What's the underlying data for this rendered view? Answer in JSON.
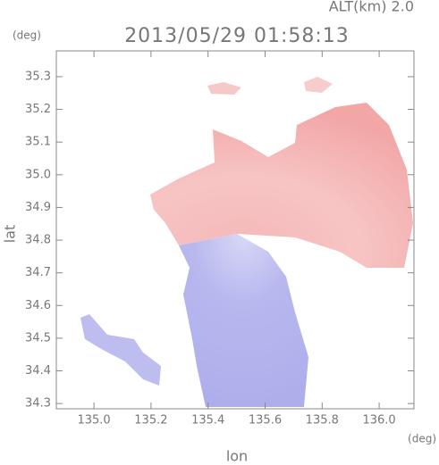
{
  "chart_data": {
    "type": "map",
    "title": "2013/05/29 01:58:13",
    "altitude_label": "ALT(km) 2.0",
    "y_unit": "(deg)",
    "x_unit": "(deg)",
    "ylabel": "lat",
    "xlabel": "lon",
    "xlim": [
      134.868,
      136.122
    ],
    "xticks": [
      {
        "value": 135,
        "label": "135.0"
      },
      135.2,
      135.4,
      135.6,
      135.8,
      {
        "value": 136,
        "label": "136.0"
      }
    ],
    "ylim": [
      34.284,
      35.379
    ],
    "yticks": [
      34.3,
      34.4,
      34.5,
      34.6,
      34.7,
      34.8,
      34.9,
      {
        "value": 35,
        "label": "35.0"
      },
      35.1,
      35.2,
      35.3
    ]
  }
}
